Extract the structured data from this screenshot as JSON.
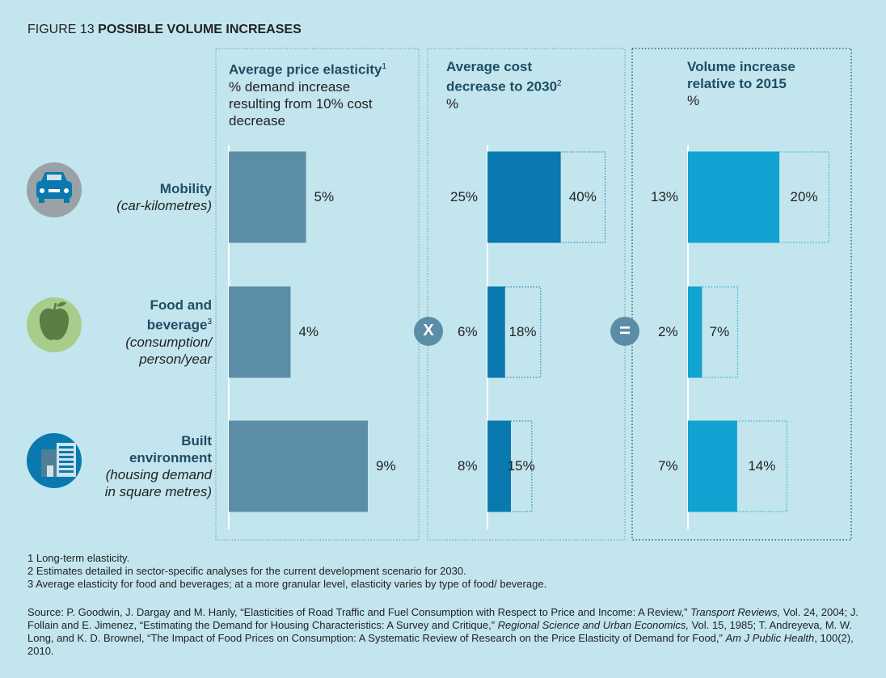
{
  "figure_label": "FIGURE 13",
  "title": "POSSIBLE VOLUME INCREASES",
  "categories": [
    {
      "name": "Mobility",
      "note": null,
      "detail": "(car-kilometres)"
    },
    {
      "name": "Food and beverage",
      "note": "3",
      "detail": "(consumption/ person/year"
    },
    {
      "name": "Built environment",
      "note": null,
      "detail": "(housing demand in square metres)"
    }
  ],
  "operators": [
    "X",
    "="
  ],
  "chart_data": [
    {
      "type": "bar",
      "title": "Average price elasticity",
      "title_note": "1",
      "subtitle": "% demand increase resulting from 10% cost decrease",
      "values": [
        5,
        4,
        9
      ],
      "value_labels": [
        "5%",
        "4%",
        "9%"
      ],
      "color": "#5b8da6"
    },
    {
      "type": "range-bar",
      "title": "Average cost decrease to 2030",
      "title_note": "2",
      "subtitle": "%",
      "series": [
        {
          "values": [
            25,
            6,
            8
          ],
          "value_labels": [
            "25%",
            "6%",
            "8%"
          ],
          "color": "#0a79af"
        },
        {
          "values": [
            40,
            18,
            15
          ],
          "value_labels": [
            "40%",
            "18%",
            "15%"
          ],
          "color": "#0a79af"
        }
      ]
    },
    {
      "type": "range-bar",
      "title": "Volume increase relative to 2015",
      "title_note": null,
      "subtitle": "%",
      "series": [
        {
          "values": [
            13,
            2,
            7
          ],
          "value_labels": [
            "13%",
            "2%",
            "7%"
          ],
          "color": "#11a3d1"
        },
        {
          "values": [
            20,
            7,
            14
          ],
          "value_labels": [
            "20%",
            "7%",
            "14%"
          ],
          "color": "#11a3d1"
        }
      ]
    }
  ],
  "footnotes": [
    "1 Long-term elasticity.",
    "2 Estimates detailed in sector-specific analyses for the current development scenario for 2030.",
    "3 Average elasticity for food and beverages; at a more granular level, elasticity varies by type of food/ beverage."
  ],
  "source": [
    "Source: P. Goodwin, J. Dargay and M. Hanly, “Elasticities of Road Traffic and Fuel Consumption with Respect to Price and Income: A Review,” ",
    "Transport Reviews,",
    " Vol. 24, 2004; J. Follain and E. Jimenez, “Estimating the Demand for Housing Characteristics: A Survey and Critique,” ",
    "Regional Science and Urban Economics,",
    " Vol. 15, 1985; T. Andreyeva, M. W. Long, and K. D. Brownel, “The Impact of Food Prices on Consumption: A Systematic Review of Research on the Price Elasticity of Demand for Food,” ",
    "Am J Public Health",
    ", 100(2), 2010."
  ]
}
